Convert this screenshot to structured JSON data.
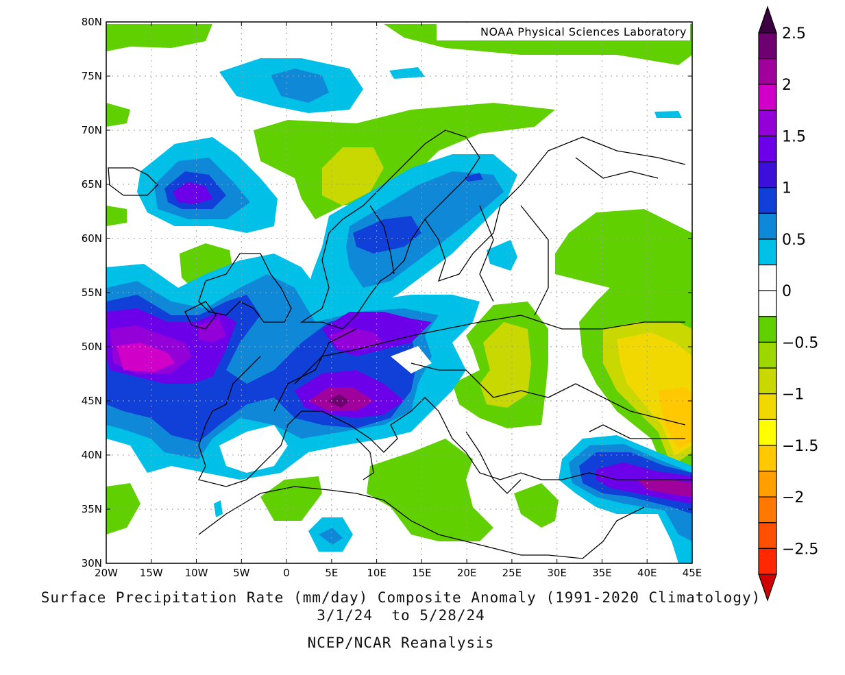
{
  "map": {
    "credit": "NOAA Physical Sciences Laboratory",
    "variable_title": "Surface Precipitation Rate (mm/day) Composite Anomaly (1991-2020 Climatology)",
    "date_range": "3/1/24  to 5/28/24",
    "source": "NCEP/NCAR Reanalysis",
    "lon_labels": [
      "20W",
      "15W",
      "10W",
      "5W",
      "0",
      "5E",
      "10E",
      "15E",
      "20E",
      "25E",
      "30E",
      "35E",
      "40E",
      "45E"
    ],
    "lat_labels": [
      "80N",
      "75N",
      "70N",
      "65N",
      "60N",
      "55N",
      "50N",
      "45N",
      "40N",
      "35N",
      "30N"
    ],
    "lon_range": [
      -20,
      45
    ],
    "lat_range": [
      30,
      80
    ]
  },
  "colorbar": {
    "labels": [
      "2.5",
      "2",
      "1.5",
      "1",
      "0.5",
      "0",
      "-0.5",
      "-1",
      "-1.5",
      "-2",
      "-2.5"
    ],
    "colors": [
      "#6e0070",
      "#a0009c",
      "#d000c8",
      "#9400d8",
      "#6c00e8",
      "#3c10d8",
      "#1040d8",
      "#1088d8",
      "#00c0e8",
      "#ffffff",
      "#ffffff",
      "#60d000",
      "#9cd800",
      "#c8d800",
      "#f0d800",
      "#ffff00",
      "#ffc800",
      "#ffa000",
      "#ff7800",
      "#ff5000",
      "#ff2800"
    ],
    "upper_arrow_color": "#3c0040",
    "lower_arrow_color": "#d00000"
  },
  "anomaly_regions": [
    {
      "name": "Norwegian Sea wet area",
      "level": "0.5-1",
      "color": "#1088d8"
    },
    {
      "name": "Atlantic west of France wet area",
      "level": "1.5-2",
      "color": "#d000c8"
    },
    {
      "name": "Western Alps wet core",
      "level": ">2.5",
      "color": "#6e0070"
    },
    {
      "name": "Eastern Europe dry area",
      "level": "-0.5 to -1",
      "color": "#c8d800"
    },
    {
      "name": "Southern Russia dry area",
      "level": "-1 to -2",
      "color": "#ffa000"
    },
    {
      "name": "Eastern Turkey wet area",
      "level": "1.5-2",
      "color": "#a0009c"
    }
  ]
}
